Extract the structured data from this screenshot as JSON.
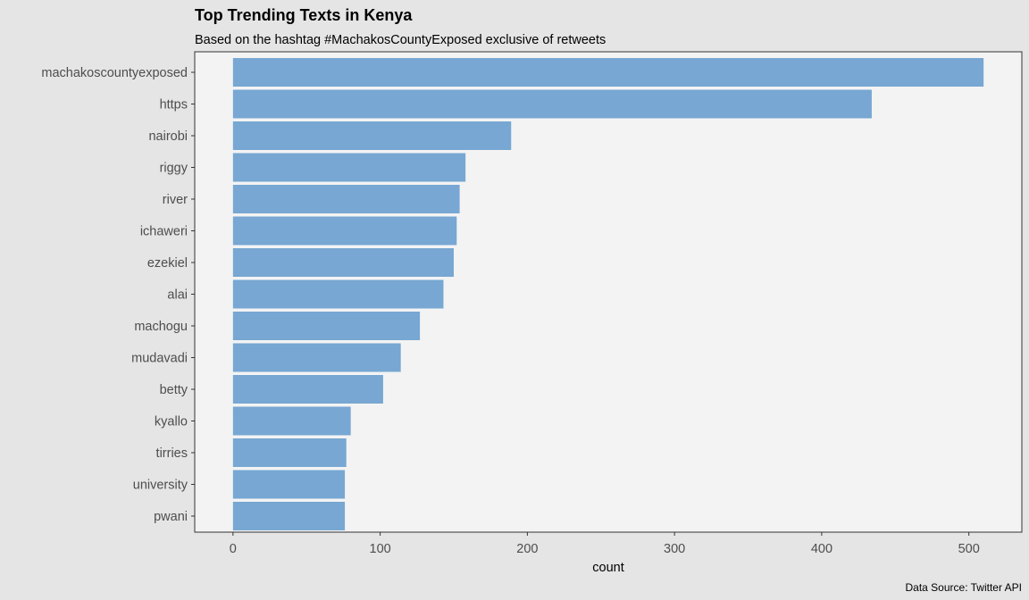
{
  "chart_data": {
    "type": "bar",
    "orientation": "horizontal",
    "title": "Top Trending Texts in Kenya",
    "subtitle": "Based on the hashtag #MachakosCountyExposed exclusive of retweets",
    "caption": "Data Source: Twitter API",
    "xlabel": "count",
    "ylabel": "",
    "xlim": [
      -26,
      536
    ],
    "xticks": [
      0,
      100,
      200,
      300,
      400,
      500
    ],
    "categories": [
      "machakoscountyexposed",
      "https",
      "nairobi",
      "riggy",
      "river",
      "ichaweri",
      "ezekiel",
      "alai",
      "machogu",
      "mudavadi",
      "betty",
      "kyallo",
      "tirries",
      "university",
      "pwani"
    ],
    "values": [
      510,
      434,
      189,
      158,
      154,
      152,
      150,
      143,
      127,
      114,
      102,
      80,
      77,
      76,
      76
    ],
    "grid": false,
    "legend": "none",
    "colors": {
      "bar": "#77a7d2",
      "panel_background": "#f3f3f4",
      "plot_background": "#e5e5e5",
      "panel_border": "#333333",
      "title": "#000000",
      "axis_text": "#4d4d4d"
    }
  }
}
